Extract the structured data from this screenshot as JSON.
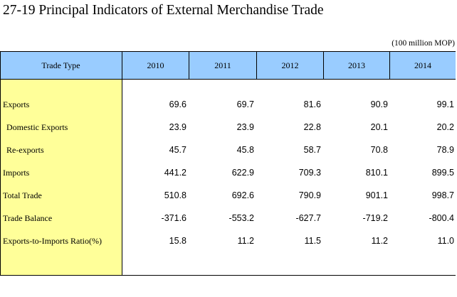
{
  "title": "27-19  Principal Indicators of External Merchandise Trade",
  "unit": "(100 million MOP)",
  "header": {
    "trade_type": "Trade Type",
    "years": [
      "2010",
      "2011",
      "2012",
      "2013",
      "2014"
    ]
  },
  "rows": [
    {
      "label": "Exports",
      "values": [
        "69.6",
        "69.7",
        "81.6",
        "90.9",
        "99.1"
      ]
    },
    {
      "label": "Domestic Exports",
      "values": [
        "23.9",
        "23.9",
        "22.8",
        "20.1",
        "20.2"
      ]
    },
    {
      "label": "Re-exports",
      "values": [
        "45.7",
        "45.8",
        "58.7",
        "70.8",
        "78.9"
      ]
    },
    {
      "label": "Imports",
      "values": [
        "441.2",
        "622.9",
        "709.3",
        "810.1",
        "899.5"
      ]
    },
    {
      "label": "Total Trade",
      "values": [
        "510.8",
        "692.6",
        "790.9",
        "901.1",
        "998.7"
      ]
    },
    {
      "label": "Trade Balance",
      "values": [
        "-371.6",
        "-553.2",
        "-627.7",
        "-719.2",
        "-800.4"
      ]
    },
    {
      "label": "Exports-to-Imports Ratio(%)",
      "values": [
        "15.8",
        "11.2",
        "11.5",
        "11.2",
        "11.0"
      ]
    }
  ],
  "colors": {
    "header_bg": "#99ccff",
    "label_column_bg": "#ffff99"
  }
}
